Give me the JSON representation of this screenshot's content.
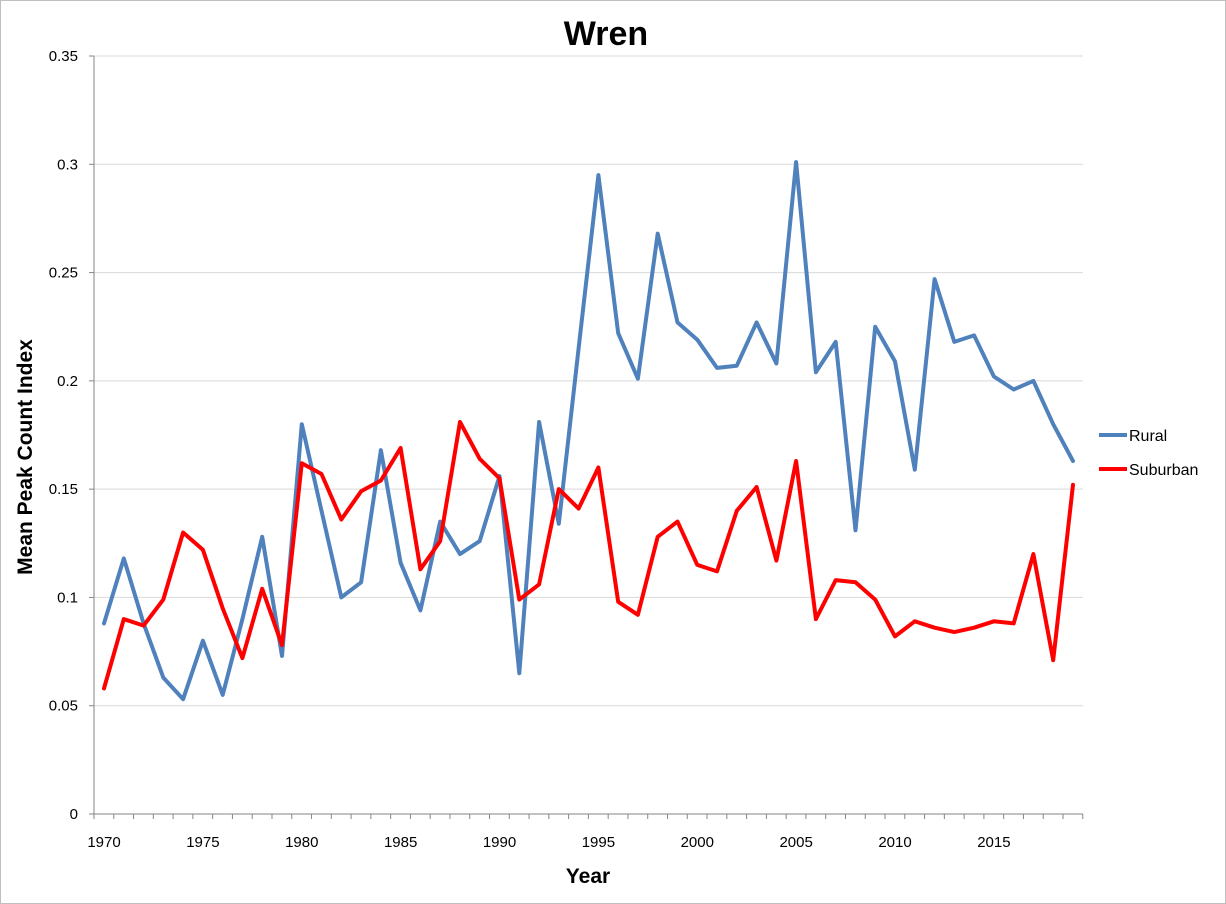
{
  "chart_data": {
    "type": "line",
    "title": "Wren",
    "xlabel": "Year",
    "ylabel": "Mean Peak Count Index",
    "xlim": [
      1970,
      2019
    ],
    "ylim": [
      0,
      0.35
    ],
    "x_ticks": [
      "1970",
      "1975",
      "1980",
      "1985",
      "1990",
      "1995",
      "2000",
      "2005",
      "2010",
      "2015"
    ],
    "y_ticks": [
      "0",
      "0.05",
      "0.1",
      "0.15",
      "0.2",
      "0.25",
      "0.3",
      "0.35"
    ],
    "grid": true,
    "legend_position": "right",
    "x": [
      1970,
      1971,
      1972,
      1973,
      1974,
      1975,
      1976,
      1977,
      1978,
      1979,
      1980,
      1981,
      1982,
      1983,
      1984,
      1985,
      1986,
      1987,
      1988,
      1989,
      1990,
      1991,
      1992,
      1993,
      1994,
      1995,
      1996,
      1997,
      1998,
      1999,
      2000,
      2001,
      2002,
      2003,
      2004,
      2005,
      2006,
      2007,
      2008,
      2009,
      2010,
      2011,
      2012,
      2013,
      2014,
      2015,
      2016,
      2017,
      2018,
      2019
    ],
    "series": [
      {
        "name": "Rural",
        "color": "#4f81bd",
        "values": [
          0.088,
          0.118,
          0.088,
          0.063,
          0.053,
          0.08,
          0.055,
          0.09,
          0.128,
          0.073,
          0.18,
          0.14,
          0.1,
          0.107,
          0.168,
          0.116,
          0.094,
          0.135,
          0.12,
          0.126,
          0.156,
          0.065,
          0.181,
          0.134,
          0.215,
          0.295,
          0.222,
          0.201,
          0.268,
          0.227,
          0.219,
          0.206,
          0.207,
          0.227,
          0.208,
          0.301,
          0.204,
          0.218,
          0.131,
          0.225,
          0.209,
          0.159,
          0.247,
          0.218,
          0.221,
          0.202,
          0.196,
          0.2,
          0.18,
          0.163
        ]
      },
      {
        "name": "Suburban",
        "color": "#ff0000",
        "values": [
          0.058,
          0.09,
          0.087,
          0.099,
          0.13,
          0.122,
          0.095,
          0.072,
          0.104,
          0.078,
          0.162,
          0.157,
          0.136,
          0.149,
          0.154,
          0.169,
          0.113,
          0.126,
          0.181,
          0.164,
          0.155,
          0.099,
          0.106,
          0.15,
          0.141,
          0.16,
          0.098,
          0.092,
          0.128,
          0.135,
          0.115,
          0.112,
          0.14,
          0.151,
          0.117,
          0.163,
          0.09,
          0.108,
          0.107,
          0.099,
          0.082,
          0.089,
          0.086,
          0.084,
          0.086,
          0.089,
          0.088,
          0.12,
          0.071,
          0.152
        ]
      }
    ]
  }
}
